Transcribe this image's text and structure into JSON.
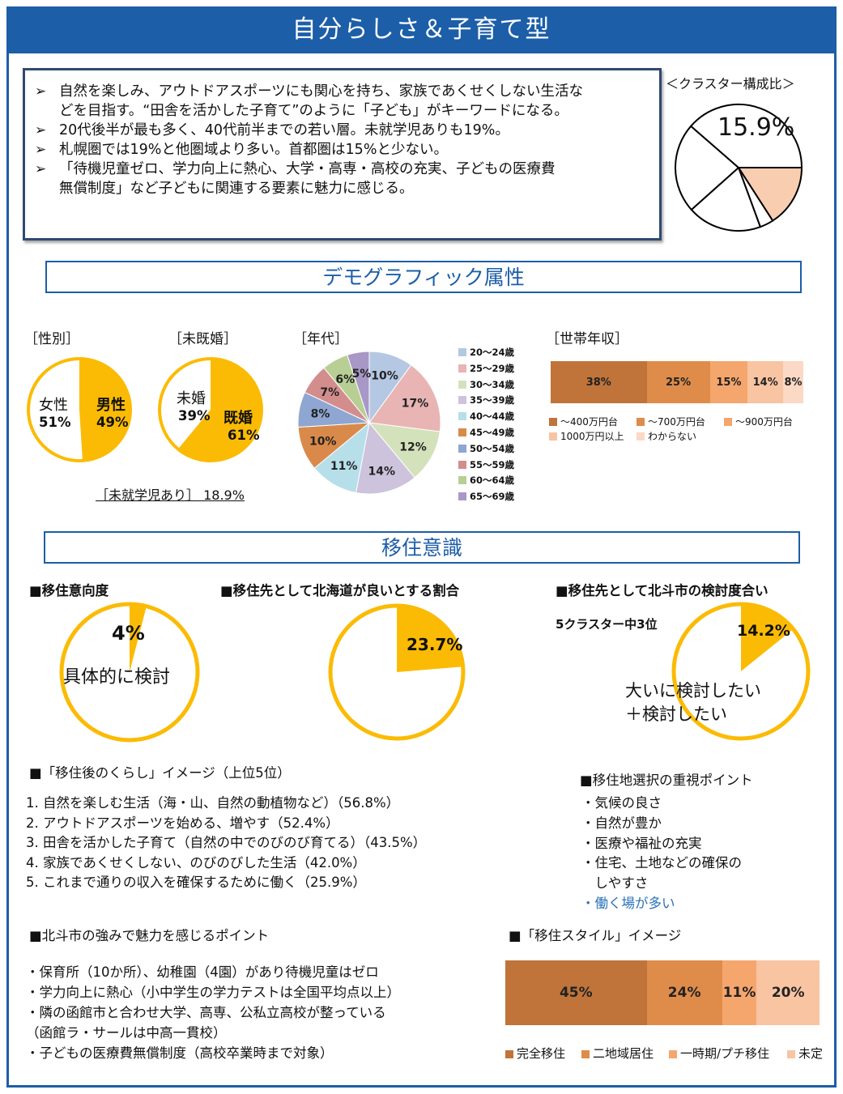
{
  "header": {
    "title": "自分らしさ＆子育て型"
  },
  "summary": {
    "bullets": [
      [
        "自然を楽しみ、アウトドアスポーツにも関心を持ち、家族であくせくしない生活な",
        "どを目指す。“田舎を活かした子育て”のように「子ども」がキーワードになる。"
      ],
      [
        "20代後半が最も多く、40代前半までの若い層。未就学児ありも19%。"
      ],
      [
        "札幌圏では19%と他圏域より多い。首都圏は15%と少ない。"
      ],
      [
        "「待機児童ゼロ、学力向上に熱心、大学・高専・高校の充実、子どもの医療費",
        "無償制度」など子どもに関連する要素に魅力に感じる。"
      ]
    ]
  },
  "cluster": {
    "title": "＜クラスター構成比＞",
    "label": "15.9%",
    "slices": [
      {
        "value": 15.9,
        "color": "#f9cdb0"
      },
      {
        "value": 3.5,
        "color": "#ffffff"
      },
      {
        "value": 19.0,
        "color": "#ffffff"
      },
      {
        "value": 23.0,
        "color": "#ffffff"
      },
      {
        "value": 38.6,
        "color": "#ffffff"
      }
    ]
  },
  "sections": {
    "demographic": "デモグラフィック属性",
    "migration": "移住意識"
  },
  "gender": {
    "title": "［性別］",
    "female_label": "女性",
    "female_value": "51%",
    "male_label": "男性",
    "male_value": "49%",
    "share": 49,
    "color": "#fbbb05"
  },
  "marital": {
    "title": "［未既婚］",
    "single_label": "未婚",
    "single_value": "39%",
    "married_label": "既婚",
    "married_value": "61%",
    "share": 61,
    "color": "#fbbb05"
  },
  "preschool": {
    "label": "［未就学児あり］ 18.9%"
  },
  "age_chart": {
    "title": "［年代］",
    "legend_label": "年代",
    "chart_data": {
      "type": "pie",
      "categories": [
        "20～24歳",
        "25～29歳",
        "30～34歳",
        "35～39歳",
        "40～44歳",
        "45～49歳",
        "50～54歳",
        "55～59歳",
        "60～64歳",
        "65～69歳"
      ],
      "values": [
        10,
        17,
        12,
        14,
        11,
        10,
        8,
        7,
        6,
        5
      ],
      "labels": [
        "10%",
        "17%",
        "12%",
        "14%",
        "11%",
        "10%",
        "8%",
        "7%",
        "6%",
        "5%"
      ],
      "colors": [
        "#b4c8e4",
        "#e8b4b4",
        "#d4e2bc",
        "#cdc3dd",
        "#b6dfea",
        "#d98a4a",
        "#8ea6d1",
        "#d48d8d",
        "#b7cf95",
        "#a898c6"
      ]
    }
  },
  "income": {
    "title": "［世帯年収］",
    "segments": [
      {
        "label": "～400万円台",
        "value": "38%",
        "pct": 38,
        "color": "#c0743a"
      },
      {
        "label": "～700万円台",
        "value": "25%",
        "pct": 25,
        "color": "#df8c4a"
      },
      {
        "label": "～900万円台",
        "value": "15%",
        "pct": 15,
        "color": "#f5a66d"
      },
      {
        "label": "1000万円以上",
        "value": "14%",
        "pct": 14,
        "color": "#f8c4a2"
      },
      {
        "label": "わからない",
        "value": "8%",
        "pct": 8,
        "color": "#fbd9c5"
      }
    ]
  },
  "intent": {
    "title": "■移住意向度",
    "value": "4%",
    "share": 4,
    "caption": "具体的に検討"
  },
  "hokkaido": {
    "title": "■移住先として北海道が良いとする割合",
    "value": "23.7%",
    "share": 23.7
  },
  "hokuto": {
    "title": "■移住先として北斗市の検討度合い",
    "rank": "5クラスター中3位",
    "value": "14.2%",
    "share": 14.2,
    "caption1": "大いに検討したい",
    "caption2": "＋検討したい"
  },
  "life_image": {
    "title": "■「移住後のくらし」イメージ（上位5位）",
    "items": [
      "1. 自然を楽しむ生活（海・山、自然の動植物など）（56.8%）",
      "2. アウトドアスポーツを始める、増やす（52.4%）",
      "3. 田舎を活かした子育て（自然の中でのびのび育てる）（43.5%）",
      "4. 家族であくせくしない、のびのびした生活（42.0%）",
      "5. これまで通りの収入を確保するために働く（25.9%）"
    ]
  },
  "priority": {
    "title": "■移住地選択の重視ポイント",
    "items": [
      "・気候の良さ",
      "・自然が豊か",
      "・医療や福祉の充実",
      "・住宅、土地などの確保の",
      "　しやすさ"
    ],
    "highlight": "・働く場が多い",
    "highlight_color": "#2a72b8"
  },
  "strengths": {
    "title": "■北斗市の強みで魅力を感じるポイント",
    "items": [
      "・保育所（10か所）、幼稚園（4園）があり待機児童はゼロ",
      "・学力向上に熱心（小中学生の学力テストは全国平均点以上）",
      "・隣の函館市と合わせ大学、高専、公私立高校が整っている",
      "（函館ラ・サールは中高一貫校）",
      "・子どもの医療費無償制度（高校卒業時まで対象）"
    ]
  },
  "style": {
    "title": "■「移住スタイル」イメージ",
    "segments": [
      {
        "label": "完全移住",
        "value": "45%",
        "pct": 45,
        "color": "#c0743a"
      },
      {
        "label": "二地域居住",
        "value": "24%",
        "pct": 24,
        "color": "#df8c4a"
      },
      {
        "label": "一時期/プチ移住",
        "value": "11%",
        "pct": 11,
        "color": "#f5a66d"
      },
      {
        "label": "未定",
        "value": "20%",
        "pct": 20,
        "color": "#f8c4a2"
      }
    ]
  }
}
